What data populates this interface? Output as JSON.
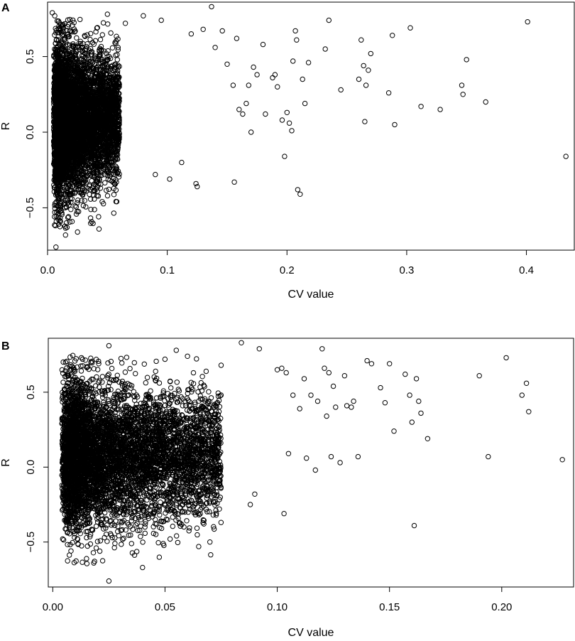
{
  "chart_data": [
    {
      "panel": "A",
      "type": "scatter",
      "title": "",
      "xlabel": "CV value",
      "ylabel": "R",
      "xlim": [
        0.0,
        0.44
      ],
      "ylim": [
        -0.78,
        0.86
      ],
      "xticks": [
        0.0,
        0.1,
        0.2,
        0.3,
        0.4
      ],
      "xtick_labels": [
        "0.0",
        "0.1",
        "0.2",
        "0.3",
        "0.4"
      ],
      "yticks": [
        -0.5,
        0.0,
        0.5
      ],
      "ytick_labels": [
        "−0.5",
        "0.0",
        "0.5"
      ],
      "grid": false,
      "marker": "open circle",
      "dense_core": {
        "x_range": [
          0.005,
          0.06
        ],
        "y_range": [
          -0.65,
          0.75
        ],
        "approx_points": 6000
      },
      "points": [
        [
          0.004,
          0.79
        ],
        [
          0.006,
          0.77
        ],
        [
          0.007,
          -0.76
        ],
        [
          0.015,
          -0.68
        ],
        [
          0.025,
          -0.66
        ],
        [
          0.043,
          -0.64
        ],
        [
          0.05,
          0.78
        ],
        [
          0.065,
          0.72
        ],
        [
          0.08,
          0.77
        ],
        [
          0.095,
          0.74
        ],
        [
          0.12,
          0.65
        ],
        [
          0.13,
          0.68
        ],
        [
          0.137,
          0.83
        ],
        [
          0.146,
          0.67
        ],
        [
          0.158,
          0.62
        ],
        [
          0.124,
          -0.34
        ],
        [
          0.125,
          -0.36
        ],
        [
          0.09,
          -0.28
        ],
        [
          0.102,
          -0.31
        ],
        [
          0.112,
          -0.2
        ],
        [
          0.14,
          0.56
        ],
        [
          0.15,
          0.45
        ],
        [
          0.155,
          0.31
        ],
        [
          0.16,
          0.15
        ],
        [
          0.156,
          -0.33
        ],
        [
          0.163,
          0.12
        ],
        [
          0.166,
          0.19
        ],
        [
          0.168,
          0.31
        ],
        [
          0.17,
          0.0
        ],
        [
          0.172,
          0.43
        ],
        [
          0.175,
          0.38
        ],
        [
          0.18,
          0.58
        ],
        [
          0.182,
          0.12
        ],
        [
          0.188,
          0.36
        ],
        [
          0.19,
          0.38
        ],
        [
          0.192,
          0.3
        ],
        [
          0.196,
          0.08
        ],
        [
          0.198,
          -0.16
        ],
        [
          0.2,
          0.13
        ],
        [
          0.202,
          0.06
        ],
        [
          0.204,
          0.01
        ],
        [
          0.205,
          0.47
        ],
        [
          0.207,
          0.67
        ],
        [
          0.208,
          0.61
        ],
        [
          0.209,
          -0.38
        ],
        [
          0.211,
          -0.41
        ],
        [
          0.213,
          0.35
        ],
        [
          0.215,
          0.19
        ],
        [
          0.218,
          0.46
        ],
        [
          0.232,
          0.55
        ],
        [
          0.235,
          0.74
        ],
        [
          0.245,
          0.28
        ],
        [
          0.26,
          0.35
        ],
        [
          0.262,
          0.61
        ],
        [
          0.264,
          0.44
        ],
        [
          0.265,
          0.07
        ],
        [
          0.266,
          0.31
        ],
        [
          0.268,
          0.41
        ],
        [
          0.27,
          0.52
        ],
        [
          0.285,
          0.26
        ],
        [
          0.288,
          0.64
        ],
        [
          0.29,
          0.05
        ],
        [
          0.303,
          0.69
        ],
        [
          0.312,
          0.17
        ],
        [
          0.328,
          0.15
        ],
        [
          0.346,
          0.31
        ],
        [
          0.347,
          0.25
        ],
        [
          0.35,
          0.48
        ],
        [
          0.366,
          0.2
        ],
        [
          0.401,
          0.73
        ],
        [
          0.433,
          -0.16
        ]
      ]
    },
    {
      "panel": "B",
      "type": "scatter",
      "title": "",
      "xlabel": "CV value",
      "ylabel": "R",
      "xlim": [
        -0.002,
        0.232
      ],
      "ylim": [
        -0.8,
        0.86
      ],
      "xticks": [
        0.0,
        0.05,
        0.1,
        0.15,
        0.2
      ],
      "xtick_labels": [
        "0.00",
        "0.05",
        "0.10",
        "0.15",
        "0.20"
      ],
      "yticks": [
        -0.5,
        0.0,
        0.5
      ],
      "ytick_labels": [
        "−0.5",
        "0.0",
        "0.5"
      ],
      "grid": false,
      "marker": "open circle",
      "dense_core": {
        "x_range": [
          0.004,
          0.075
        ],
        "y_range": [
          -0.65,
          0.75
        ],
        "approx_points": 6000
      },
      "points": [
        [
          0.025,
          -0.76
        ],
        [
          0.04,
          -0.67
        ],
        [
          0.025,
          0.81
        ],
        [
          0.05,
          0.72
        ],
        [
          0.055,
          0.78
        ],
        [
          0.06,
          0.74
        ],
        [
          0.075,
          0.68
        ],
        [
          0.084,
          0.83
        ],
        [
          0.092,
          0.79
        ],
        [
          0.065,
          -0.53
        ],
        [
          0.07,
          -0.5
        ],
        [
          0.088,
          -0.25
        ],
        [
          0.09,
          -0.18
        ],
        [
          0.1,
          0.65
        ],
        [
          0.102,
          0.66
        ],
        [
          0.103,
          -0.31
        ],
        [
          0.104,
          0.63
        ],
        [
          0.105,
          0.09
        ],
        [
          0.107,
          0.48
        ],
        [
          0.11,
          0.39
        ],
        [
          0.112,
          0.59
        ],
        [
          0.113,
          0.06
        ],
        [
          0.115,
          0.48
        ],
        [
          0.117,
          -0.02
        ],
        [
          0.118,
          0.44
        ],
        [
          0.12,
          0.79
        ],
        [
          0.121,
          0.66
        ],
        [
          0.122,
          0.34
        ],
        [
          0.123,
          0.63
        ],
        [
          0.125,
          0.54
        ],
        [
          0.124,
          0.07
        ],
        [
          0.126,
          0.4
        ],
        [
          0.128,
          0.03
        ],
        [
          0.13,
          0.61
        ],
        [
          0.131,
          0.41
        ],
        [
          0.133,
          0.4
        ],
        [
          0.134,
          0.44
        ],
        [
          0.136,
          0.07
        ],
        [
          0.14,
          0.71
        ],
        [
          0.142,
          0.69
        ],
        [
          0.146,
          0.53
        ],
        [
          0.148,
          0.43
        ],
        [
          0.15,
          0.69
        ],
        [
          0.152,
          0.24
        ],
        [
          0.157,
          0.62
        ],
        [
          0.159,
          0.48
        ],
        [
          0.16,
          0.3
        ],
        [
          0.161,
          -0.39
        ],
        [
          0.162,
          0.59
        ],
        [
          0.163,
          0.44
        ],
        [
          0.164,
          0.36
        ],
        [
          0.167,
          0.19
        ],
        [
          0.19,
          0.61
        ],
        [
          0.194,
          0.07
        ],
        [
          0.202,
          0.73
        ],
        [
          0.209,
          0.48
        ],
        [
          0.211,
          0.56
        ],
        [
          0.212,
          0.37
        ],
        [
          0.227,
          0.05
        ]
      ]
    }
  ]
}
